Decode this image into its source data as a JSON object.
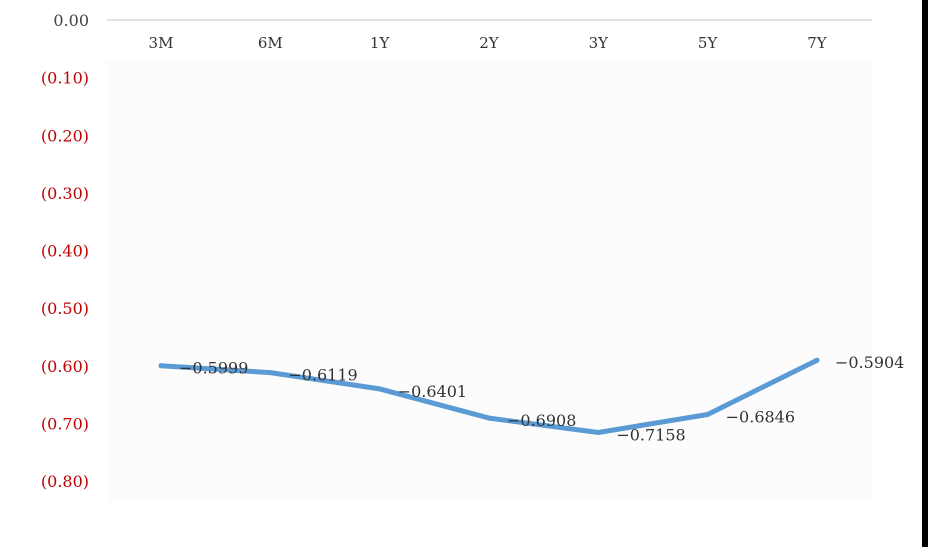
{
  "chart_data": {
    "type": "line",
    "title": "",
    "xlabel": "",
    "ylabel": "",
    "categories": [
      "3M",
      "6M",
      "1Y",
      "2Y",
      "3Y",
      "5Y",
      "7Y"
    ],
    "series": [
      {
        "values": [
          -0.5999,
          -0.6119,
          -0.6401,
          -0.6908,
          -0.7158,
          -0.6846,
          -0.5904
        ]
      }
    ],
    "data_labels": [
      "−0.5999",
      "−0.6119",
      "−0.6401",
      "−0.6908",
      "−0.7158",
      "−0.6846",
      "−0.5904"
    ],
    "ylim": [
      -0.8,
      0
    ],
    "yticks": [
      0,
      -0.1,
      -0.2,
      -0.3,
      -0.4,
      -0.5,
      -0.6,
      -0.7,
      -0.8
    ],
    "ytick_labels": [
      "0.00",
      "(0.10)",
      "(0.20)",
      "(0.30)",
      "(0.40)",
      "(0.50)",
      "(0.60)",
      "(0.70)",
      "(0.80)"
    ],
    "grid": false,
    "legend": "none",
    "colors": {
      "line": "#5b9bd5",
      "negative_tick": "#c00000",
      "zero_tick": "#444444",
      "axis": "#d9d9d9",
      "plot_bg": "#fcfcfc",
      "text": "#333333"
    }
  }
}
